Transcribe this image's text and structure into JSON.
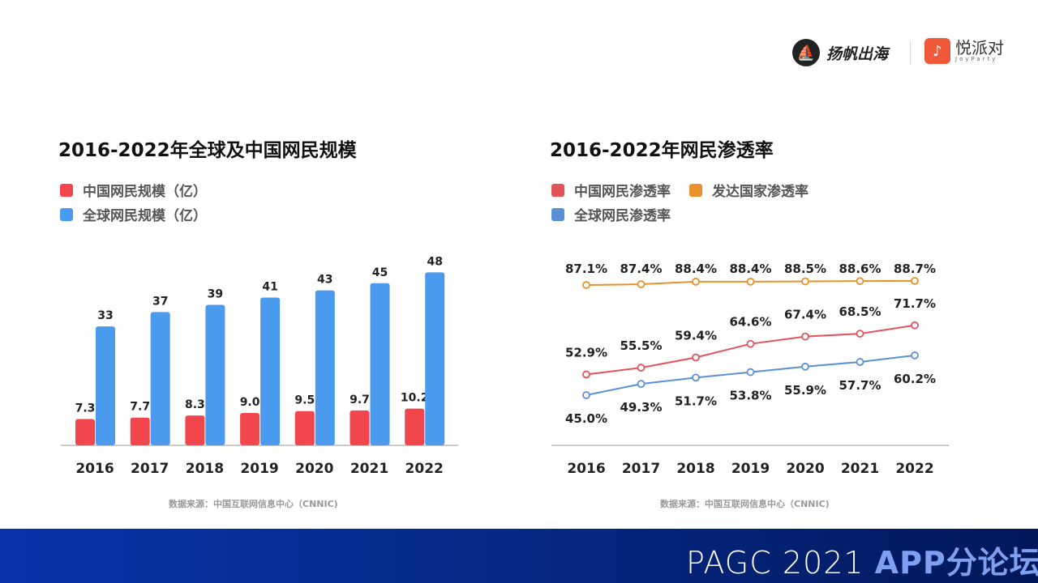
{
  "header": {
    "logo1_text": "扬帆出海",
    "logo2_text": "悦派对",
    "logo2_sub": "JoyParty"
  },
  "footer": {
    "brand": "PAGC 2021",
    "forum": "APP分论坛"
  },
  "colors": {
    "china": "#f0464c",
    "global": "#4a9aee",
    "developed": "#e8912c",
    "china_line": "#e2535c",
    "global_line": "#5b8fd6"
  },
  "chart_data": [
    {
      "type": "bar",
      "title": "2016-2022年全球及中国网民规模",
      "categories": [
        "2016",
        "2017",
        "2018",
        "2019",
        "2020",
        "2021",
        "2022"
      ],
      "series": [
        {
          "name": "中国网民规模（亿）",
          "values": [
            7.3,
            7.7,
            8.3,
            9.0,
            9.5,
            9.7,
            10.2
          ],
          "labels": [
            "7.3",
            "7.7",
            "8.3",
            "9.0",
            "9.5",
            "9.7",
            "10.2"
          ]
        },
        {
          "name": "全球网民规模（亿）",
          "values": [
            33,
            37,
            39,
            41,
            43,
            45,
            48
          ],
          "labels": [
            "33",
            "37",
            "39",
            "41",
            "43",
            "45",
            "48"
          ]
        }
      ],
      "ylim": [
        0,
        50
      ],
      "grid": false,
      "legend": "top-left",
      "source": "数据来源：中国互联网信息中心（CNNIC)"
    },
    {
      "type": "line",
      "title": "2016-2022年网民渗透率",
      "categories": [
        "2016",
        "2017",
        "2018",
        "2019",
        "2020",
        "2021",
        "2022"
      ],
      "series": [
        {
          "name": "中国网民渗透率",
          "values": [
            52.9,
            55.5,
            59.4,
            64.6,
            67.4,
            68.5,
            71.7
          ],
          "labels": [
            "52.9%",
            "55.5%",
            "59.4%",
            "64.6%",
            "67.4%",
            "68.5%",
            "71.7%"
          ]
        },
        {
          "name": "发达国家渗透率",
          "values": [
            87.1,
            87.4,
            88.4,
            88.4,
            88.5,
            88.6,
            88.7
          ],
          "labels": [
            "87.1%",
            "87.4%",
            "88.4%",
            "88.4%",
            "88.5%",
            "88.6%",
            "88.7%"
          ]
        },
        {
          "name": "全球网民渗透率",
          "values": [
            45.0,
            49.3,
            51.7,
            53.8,
            55.9,
            57.7,
            60.2
          ],
          "labels": [
            "45.0%",
            "49.3%",
            "51.7%",
            "53.8%",
            "55.9%",
            "57.7%",
            "60.2%"
          ]
        }
      ],
      "grid": false,
      "legend": "top-left",
      "source": "数据来源：中国互联网信息中心（CNNIC)"
    }
  ]
}
